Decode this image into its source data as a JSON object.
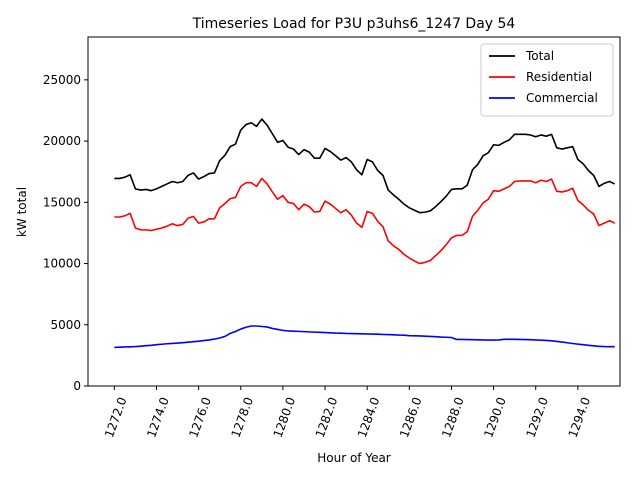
{
  "chart_data": {
    "type": "line",
    "title": "Timeseries Load for P3U p3uhs6_1247  Day 54",
    "xlabel": "Hour of Year",
    "ylabel": "kW total",
    "xlim": [
      1270.75,
      1296.0
    ],
    "ylim": [
      0,
      28500
    ],
    "x_ticks": [
      1272,
      1274,
      1276,
      1278,
      1280,
      1282,
      1284,
      1286,
      1288,
      1290,
      1292,
      1294
    ],
    "x_tick_labels": [
      "1272.0",
      "1274.0",
      "1276.0",
      "1278.0",
      "1280.0",
      "1282.0",
      "1284.0",
      "1286.0",
      "1288.0",
      "1290.0",
      "1292.0",
      "1294.0"
    ],
    "y_ticks": [
      0,
      5000,
      10000,
      15000,
      20000,
      25000
    ],
    "y_tick_labels": [
      "0",
      "5000",
      "10000",
      "15000",
      "20000",
      "25000"
    ],
    "legend_position": "upper right",
    "grid": false,
    "x": [
      1272.0,
      1272.25,
      1272.5,
      1272.75,
      1273.0,
      1273.25,
      1273.5,
      1273.75,
      1274.0,
      1274.25,
      1274.5,
      1274.75,
      1275.0,
      1275.25,
      1275.5,
      1275.75,
      1276.0,
      1276.25,
      1276.5,
      1276.75,
      1277.0,
      1277.25,
      1277.5,
      1277.75,
      1278.0,
      1278.25,
      1278.5,
      1278.75,
      1279.0,
      1279.25,
      1279.5,
      1279.75,
      1280.0,
      1280.25,
      1280.5,
      1280.75,
      1281.0,
      1281.25,
      1281.5,
      1281.75,
      1282.0,
      1282.25,
      1282.5,
      1282.75,
      1283.0,
      1283.25,
      1283.5,
      1283.75,
      1284.0,
      1284.25,
      1284.5,
      1284.75,
      1285.0,
      1285.25,
      1285.5,
      1285.75,
      1286.0,
      1286.25,
      1286.5,
      1286.75,
      1287.0,
      1287.25,
      1287.5,
      1287.75,
      1288.0,
      1288.25,
      1288.5,
      1288.75,
      1289.0,
      1289.25,
      1289.5,
      1289.75,
      1290.0,
      1290.25,
      1290.5,
      1290.75,
      1291.0,
      1291.25,
      1291.5,
      1291.75,
      1292.0,
      1292.25,
      1292.5,
      1292.75,
      1293.0,
      1293.25,
      1293.5,
      1293.75,
      1294.0,
      1294.25,
      1294.5,
      1294.75,
      1295.0,
      1295.25,
      1295.5,
      1295.75
    ],
    "series": [
      {
        "name": "Total",
        "color": "#000000",
        "values": [
          16950,
          16950,
          17050,
          17250,
          16100,
          16000,
          16050,
          15950,
          16100,
          16300,
          16500,
          16700,
          16600,
          16700,
          17200,
          17400,
          16900,
          17100,
          17350,
          17400,
          18400,
          18850,
          19550,
          19750,
          20900,
          21350,
          21500,
          21200,
          21800,
          21300,
          20600,
          19900,
          20050,
          19500,
          19350,
          18900,
          19300,
          19100,
          18600,
          18600,
          19400,
          19150,
          18800,
          18450,
          18650,
          18300,
          17650,
          17250,
          18500,
          18300,
          17600,
          17200,
          16000,
          15600,
          15250,
          14850,
          14550,
          14350,
          14150,
          14200,
          14300,
          14650,
          15050,
          15500,
          16050,
          16100,
          16100,
          16400,
          17650,
          18100,
          18800,
          19050,
          19700,
          19650,
          19900,
          20100,
          20550,
          20550,
          20550,
          20500,
          20350,
          20500,
          20400,
          20550,
          19450,
          19350,
          19450,
          19550,
          18500,
          18150,
          17600,
          17200,
          16300,
          16550,
          16700,
          16500
        ]
      },
      {
        "name": "Residential",
        "color": "#ff0000",
        "values": [
          13800,
          13800,
          13900,
          14100,
          12900,
          12750,
          12750,
          12700,
          12800,
          12900,
          13050,
          13250,
          13100,
          13200,
          13700,
          13850,
          13300,
          13400,
          13650,
          13650,
          14550,
          14900,
          15300,
          15400,
          16300,
          16600,
          16600,
          16300,
          16950,
          16500,
          15850,
          15250,
          15550,
          15000,
          14900,
          14400,
          14850,
          14650,
          14200,
          14250,
          15100,
          14850,
          14500,
          14150,
          14400,
          13950,
          13300,
          12950,
          14250,
          14100,
          13450,
          13000,
          11850,
          11450,
          11150,
          10750,
          10450,
          10200,
          10000,
          10100,
          10250,
          10650,
          11050,
          11550,
          12100,
          12300,
          12300,
          12600,
          13850,
          14350,
          14950,
          15250,
          15950,
          15900,
          16100,
          16300,
          16700,
          16750,
          16750,
          16750,
          16600,
          16800,
          16700,
          16900,
          15900,
          15850,
          15950,
          16150,
          15150,
          14800,
          14350,
          14050,
          13100,
          13300,
          13500,
          13300
        ]
      },
      {
        "name": "Commercial",
        "color": "#0000ff",
        "values": [
          3150,
          3170,
          3190,
          3200,
          3220,
          3250,
          3290,
          3320,
          3370,
          3410,
          3450,
          3480,
          3510,
          3540,
          3580,
          3620,
          3660,
          3710,
          3760,
          3830,
          3920,
          4050,
          4300,
          4450,
          4650,
          4800,
          4900,
          4900,
          4860,
          4820,
          4700,
          4620,
          4540,
          4500,
          4480,
          4460,
          4440,
          4420,
          4400,
          4380,
          4360,
          4340,
          4320,
          4310,
          4290,
          4280,
          4270,
          4260,
          4250,
          4240,
          4230,
          4210,
          4200,
          4180,
          4160,
          4150,
          4110,
          4100,
          4090,
          4070,
          4050,
          4030,
          4000,
          3980,
          3960,
          3800,
          3800,
          3790,
          3780,
          3770,
          3760,
          3750,
          3750,
          3760,
          3810,
          3810,
          3810,
          3800,
          3790,
          3780,
          3760,
          3740,
          3720,
          3690,
          3640,
          3590,
          3530,
          3470,
          3420,
          3370,
          3320,
          3280,
          3240,
          3220,
          3210,
          3210
        ]
      }
    ]
  }
}
